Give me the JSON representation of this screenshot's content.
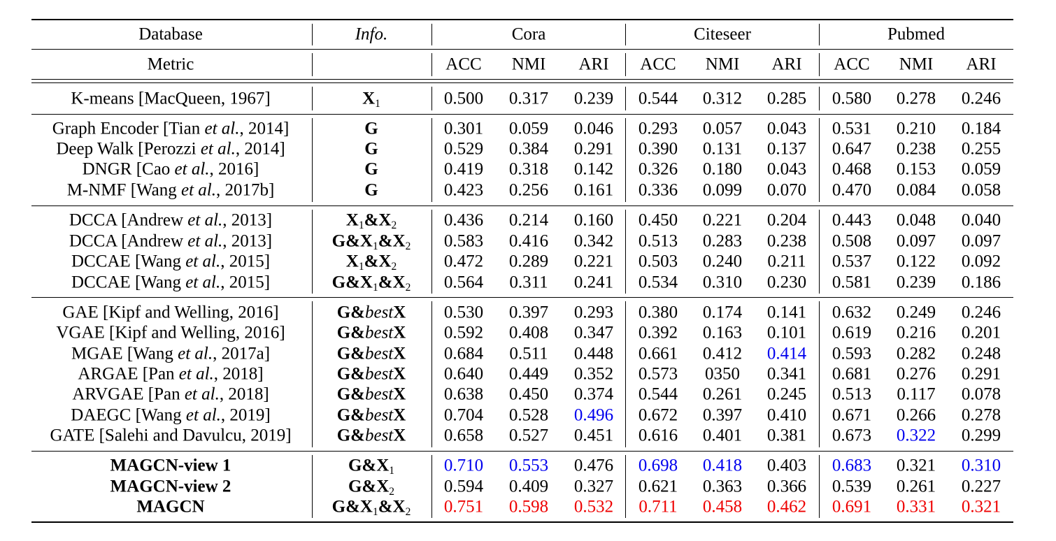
{
  "header": {
    "database_label": "Database",
    "info_label": "Info.",
    "metric_label": "Metric",
    "datasets": [
      "Cora",
      "Citeseer",
      "Pubmed"
    ],
    "metrics": [
      "ACC",
      "NMI",
      "ARI"
    ]
  },
  "symbols": {
    "X": "X",
    "G": "G",
    "amp": "&",
    "best": "best",
    "sub1": "1",
    "sub2": "2"
  },
  "groups": [
    {
      "rows": [
        {
          "method": "K-means [MacQueen, 1967]",
          "info": "X1",
          "values": [
            "0.500",
            "0.317",
            "0.239",
            "0.544",
            "0.312",
            "0.285",
            "0.580",
            "0.278",
            "0.246"
          ],
          "highlight": [
            "",
            "",
            "",
            "",
            "",
            "",
            "",
            "",
            ""
          ]
        }
      ]
    },
    {
      "rows": [
        {
          "method_pre": "Graph Encoder [Tian ",
          "method_it": "et al.",
          "method_post": ", 2014]",
          "info": "G",
          "values": [
            "0.301",
            "0.059",
            "0.046",
            "0.293",
            "0.057",
            "0.043",
            "0.531",
            "0.210",
            "0.184"
          ],
          "highlight": [
            "",
            "",
            "",
            "",
            "",
            "",
            "",
            "",
            ""
          ]
        },
        {
          "method_pre": "Deep Walk [Perozzi ",
          "method_it": "et al.",
          "method_post": ", 2014]",
          "info": "G",
          "values": [
            "0.529",
            "0.384",
            "0.291",
            "0.390",
            "0.131",
            "0.137",
            "0.647",
            "0.238",
            "0.255"
          ],
          "highlight": [
            "",
            "",
            "",
            "",
            "",
            "",
            "",
            "",
            ""
          ]
        },
        {
          "method_pre": "DNGR [Cao ",
          "method_it": "et al.",
          "method_post": ", 2016]",
          "info": "G",
          "values": [
            "0.419",
            "0.318",
            "0.142",
            "0.326",
            "0.180",
            "0.043",
            "0.468",
            "0.153",
            "0.059"
          ],
          "highlight": [
            "",
            "",
            "",
            "",
            "",
            "",
            "",
            "",
            ""
          ]
        },
        {
          "method_pre": "M-NMF [Wang ",
          "method_it": "et al.",
          "method_post": ", 2017b]",
          "info": "G",
          "values": [
            "0.423",
            "0.256",
            "0.161",
            "0.336",
            "0.099",
            "0.070",
            "0.470",
            "0.084",
            "0.058"
          ],
          "highlight": [
            "",
            "",
            "",
            "",
            "",
            "",
            "",
            "",
            ""
          ]
        }
      ]
    },
    {
      "rows": [
        {
          "method_pre": "DCCA [Andrew ",
          "method_it": "et al.",
          "method_post": ", 2013]",
          "info": "X1&X2",
          "values": [
            "0.436",
            "0.214",
            "0.160",
            "0.450",
            "0.221",
            "0.204",
            "0.443",
            "0.048",
            "0.040"
          ],
          "highlight": [
            "",
            "",
            "",
            "",
            "",
            "",
            "",
            "",
            ""
          ]
        },
        {
          "method_pre": "DCCA [Andrew ",
          "method_it": "et al.",
          "method_post": ", 2013]",
          "info": "G&X1&X2",
          "values": [
            "0.583",
            "0.416",
            "0.342",
            "0.513",
            "0.283",
            "0.238",
            "0.508",
            "0.097",
            "0.097"
          ],
          "highlight": [
            "",
            "",
            "",
            "",
            "",
            "",
            "",
            "",
            ""
          ]
        },
        {
          "method_pre": "DCCAE [Wang ",
          "method_it": "et al.",
          "method_post": ", 2015]",
          "info": "X1&X2",
          "values": [
            "0.472",
            "0.289",
            "0.221",
            "0.503",
            "0.240",
            "0.211",
            "0.537",
            "0.122",
            "0.092"
          ],
          "highlight": [
            "",
            "",
            "",
            "",
            "",
            "",
            "",
            "",
            ""
          ]
        },
        {
          "method_pre": "DCCAE [Wang ",
          "method_it": "et al.",
          "method_post": ", 2015]",
          "info": "G&X1&X2",
          "values": [
            "0.564",
            "0.311",
            "0.241",
            "0.534",
            "0.310",
            "0.230",
            "0.581",
            "0.239",
            "0.186"
          ],
          "highlight": [
            "",
            "",
            "",
            "",
            "",
            "",
            "",
            "",
            ""
          ]
        }
      ]
    },
    {
      "rows": [
        {
          "method": "GAE [Kipf and Welling, 2016]",
          "info": "G&bestX",
          "values": [
            "0.530",
            "0.397",
            "0.293",
            "0.380",
            "0.174",
            "0.141",
            "0.632",
            "0.249",
            "0.246"
          ],
          "highlight": [
            "",
            "",
            "",
            "",
            "",
            "",
            "",
            "",
            ""
          ]
        },
        {
          "method": "VGAE [Kipf and Welling, 2016]",
          "info": "G&bestX",
          "values": [
            "0.592",
            "0.408",
            "0.347",
            "0.392",
            "0.163",
            "0.101",
            "0.619",
            "0.216",
            "0.201"
          ],
          "highlight": [
            "",
            "",
            "",
            "",
            "",
            "",
            "",
            "",
            ""
          ]
        },
        {
          "method_pre": "MGAE [Wang ",
          "method_it": "et al.",
          "method_post": ", 2017a]",
          "info": "G&bestX",
          "values": [
            "0.684",
            "0.511",
            "0.448",
            "0.661",
            "0.412",
            "0.414",
            "0.593",
            "0.282",
            "0.248"
          ],
          "highlight": [
            "",
            "",
            "",
            "",
            "",
            "blue",
            "",
            "",
            ""
          ]
        },
        {
          "method_pre": "ARGAE [Pan ",
          "method_it": "et al.",
          "method_post": ", 2018]",
          "info": "G&bestX",
          "values": [
            "0.640",
            "0.449",
            "0.352",
            "0.573",
            "0350",
            "0.341",
            "0.681",
            "0.276",
            "0.291"
          ],
          "highlight": [
            "",
            "",
            "",
            "",
            "",
            "",
            "",
            "",
            ""
          ]
        },
        {
          "method_pre": "ARVGAE [Pan ",
          "method_it": "et al.",
          "method_post": ", 2018]",
          "info": "G&bestX",
          "values": [
            "0.638",
            "0.450",
            "0.374",
            "0.544",
            "0.261",
            "0.245",
            "0.513",
            "0.117",
            "0.078"
          ],
          "highlight": [
            "",
            "",
            "",
            "",
            "",
            "",
            "",
            "",
            ""
          ]
        },
        {
          "method_pre": "DAEGC [Wang ",
          "method_it": "et al.",
          "method_post": ", 2019]",
          "info": "G&bestX",
          "values": [
            "0.704",
            "0.528",
            "0.496",
            "0.672",
            "0.397",
            "0.410",
            "0.671",
            "0.266",
            "0.278"
          ],
          "highlight": [
            "",
            "",
            "blue",
            "",
            "",
            "",
            "",
            "",
            ""
          ]
        },
        {
          "method": "GATE [Salehi and Davulcu, 2019]",
          "info": "G&bestX",
          "values": [
            "0.658",
            "0.527",
            "0.451",
            "0.616",
            "0.401",
            "0.381",
            "0.673",
            "0.322",
            "0.299"
          ],
          "highlight": [
            "",
            "",
            "",
            "",
            "",
            "",
            "",
            "blue",
            ""
          ]
        }
      ]
    },
    {
      "rows": [
        {
          "method": "MAGCN-view 1",
          "bold": true,
          "info": "G&X1",
          "values": [
            "0.710",
            "0.553",
            "0.476",
            "0.698",
            "0.418",
            "0.403",
            "0.683",
            "0.321",
            "0.310"
          ],
          "highlight": [
            "blue",
            "blue",
            "",
            "blue",
            "blue",
            "",
            "blue",
            "",
            "blue"
          ]
        },
        {
          "method": "MAGCN-view 2",
          "bold": true,
          "info": "G&X2",
          "values": [
            "0.594",
            "0.409",
            "0.327",
            "0.621",
            "0.363",
            "0.366",
            "0.539",
            "0.261",
            "0.227"
          ],
          "highlight": [
            "",
            "",
            "",
            "",
            "",
            "",
            "",
            "",
            ""
          ]
        },
        {
          "method": "MAGCN",
          "bold": true,
          "info": "G&X1&X2",
          "values": [
            "0.751",
            "0.598",
            "0.532",
            "0.711",
            "0.458",
            "0.462",
            "0.691",
            "0.331",
            "0.321"
          ],
          "highlight": [
            "red",
            "red",
            "red",
            "red",
            "red",
            "red",
            "red",
            "red",
            "red"
          ]
        }
      ]
    }
  ]
}
